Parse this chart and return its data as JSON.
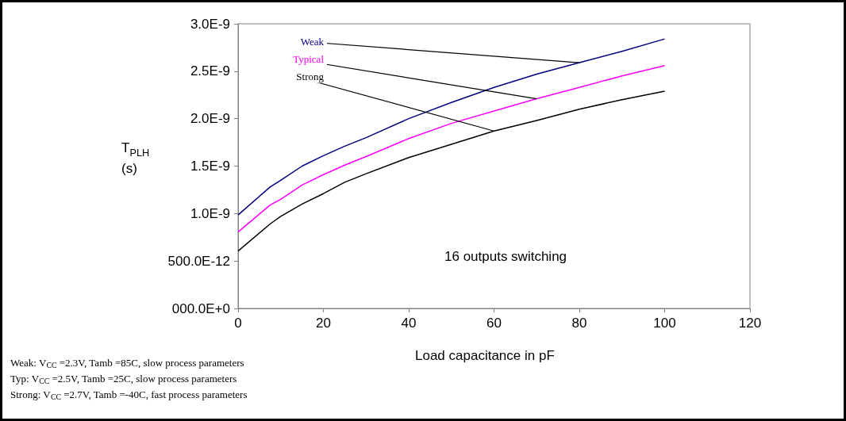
{
  "chart_data": {
    "type": "line",
    "xlabel": "Load capacitance in pF",
    "ylabel": "T$_{PLH}$\n(s)",
    "x": [
      0,
      7.5,
      10,
      15,
      20,
      25,
      30,
      40,
      50,
      60,
      70,
      80,
      90,
      100
    ],
    "series": [
      {
        "name": "Weak",
        "color": "#000080",
        "values": [
          9.85e-10,
          1.28e-09,
          1.35e-09,
          1.5e-09,
          1.61e-09,
          1.71e-09,
          1.8e-09,
          2e-09,
          2.17e-09,
          2.33e-09,
          2.47e-09,
          2.59e-09,
          2.71e-09,
          2.84e-09
        ]
      },
      {
        "name": "Typical",
        "color": "#ff00ff",
        "values": [
          8.05e-10,
          1.09e-09,
          1.15e-09,
          1.3e-09,
          1.41e-09,
          1.51e-09,
          1.6e-09,
          1.79e-09,
          1.95e-09,
          2.08e-09,
          2.21e-09,
          2.33e-09,
          2.45e-09,
          2.56e-09
        ]
      },
      {
        "name": "Strong",
        "color": "#000000",
        "values": [
          6.05e-10,
          8.9e-10,
          9.7e-10,
          1.1e-09,
          1.21e-09,
          1.33e-09,
          1.42e-09,
          1.59e-09,
          1.73e-09,
          1.87e-09,
          1.98e-09,
          2.1e-09,
          2.2e-09,
          2.29e-09
        ]
      }
    ],
    "xlim": [
      0,
      120
    ],
    "xticks": [
      0,
      20,
      40,
      60,
      80,
      100,
      120
    ],
    "ylim": [
      0,
      3e-09
    ],
    "yticks": [
      {
        "value": 0,
        "label": "000.0E+0"
      },
      {
        "value": 5e-10,
        "label": "500.0E-12"
      },
      {
        "value": 1e-09,
        "label": "1.0E-9"
      },
      {
        "value": 1.5e-09,
        "label": "1.5E-9"
      },
      {
        "value": 2e-09,
        "label": "2.0E-9"
      },
      {
        "value": 2.5e-09,
        "label": "2.5E-9"
      },
      {
        "value": 3e-09,
        "label": "3.0E-9"
      }
    ],
    "grid": false,
    "legend": false,
    "marker": "none",
    "line_style": "solid",
    "annotations": [
      "16 outputs switching",
      "Weak: V$_{CC}$ =2.3V, Tamb =85C, slow process parameters",
      "Typ: V$_{CC}$ =2.5V, Tamb =25C, slow process parameters",
      "Strong: V$_{CC}$ =2.7V, Tamb =-40C, fast process parameters"
    ]
  }
}
